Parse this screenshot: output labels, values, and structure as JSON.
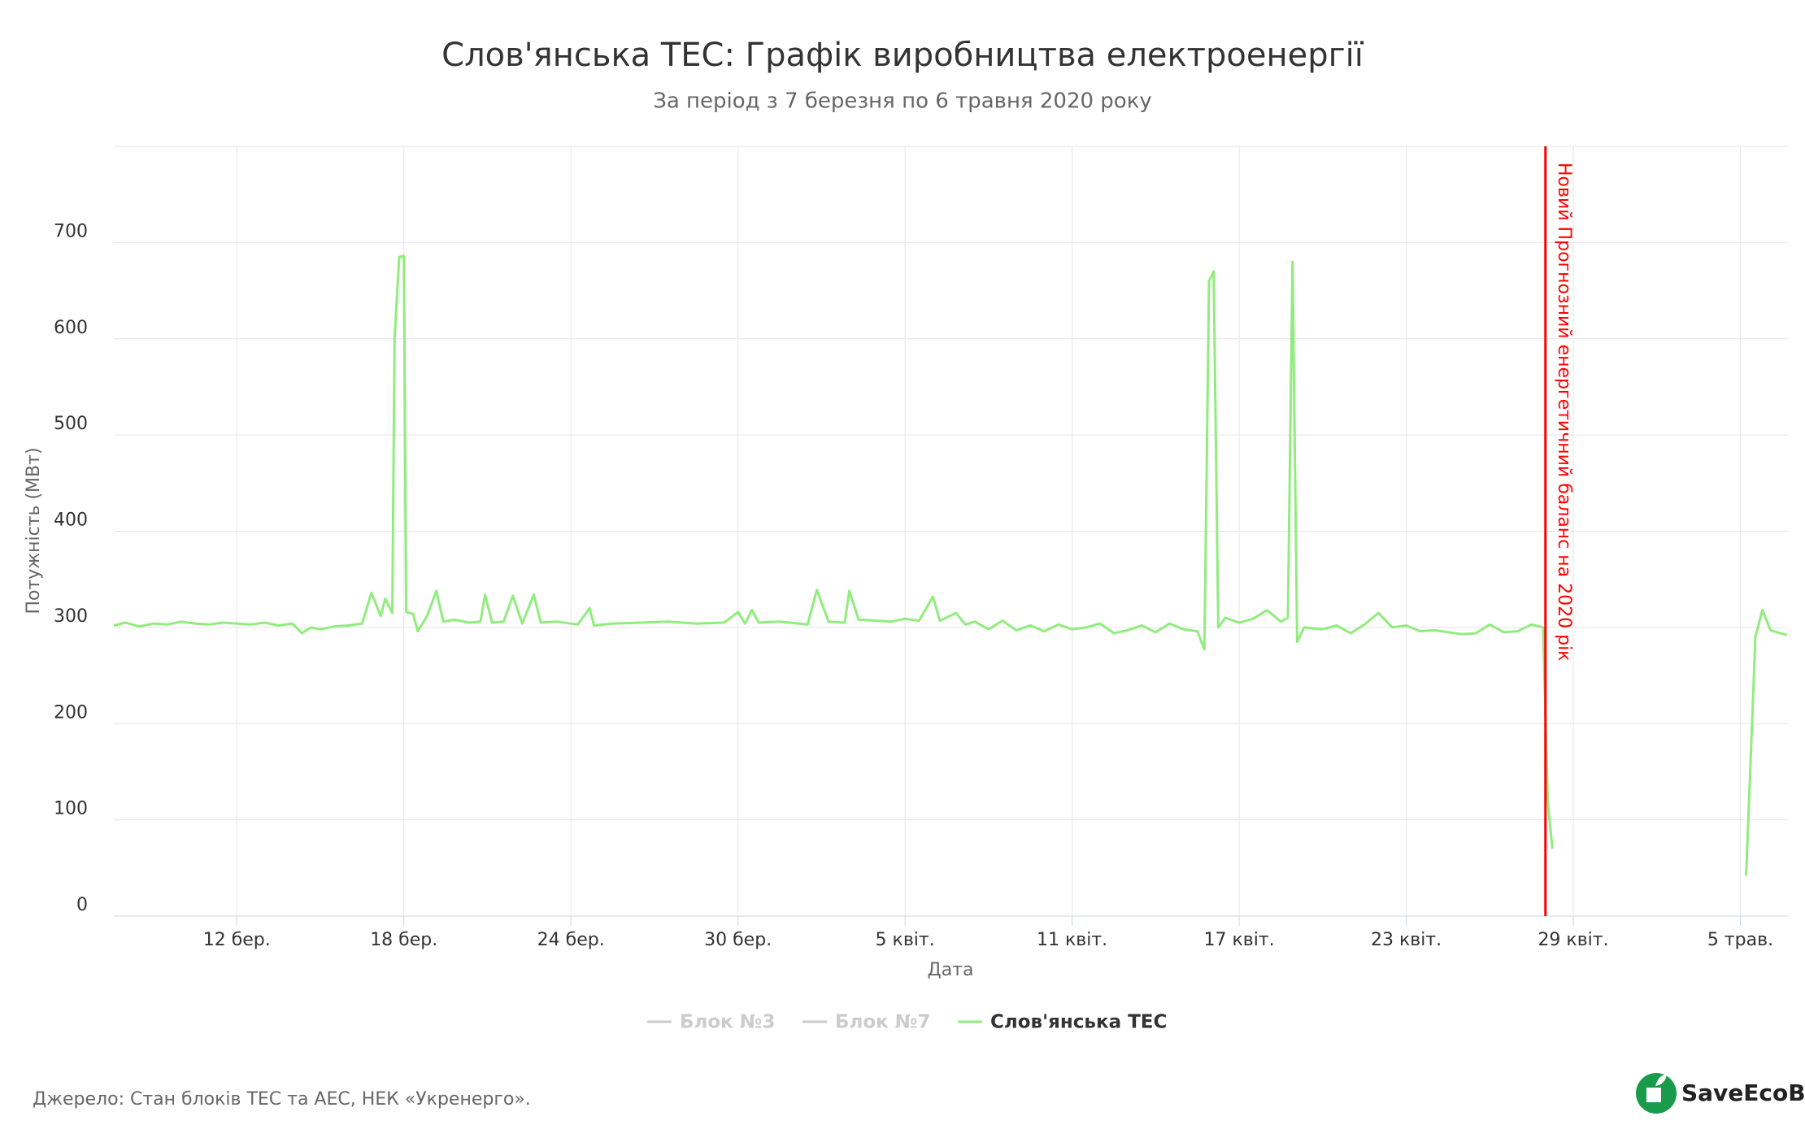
{
  "chart_data": {
    "type": "line",
    "title": "Слов'янська ТЕС: Графік виробництва електроенергії",
    "subtitle": "За період з 7 березня по 6 травня 2020 року",
    "y_label": "Потужність (МВт)",
    "x_label": "Дата",
    "ylim": [
      0,
      800
    ],
    "yticks": [
      0,
      100,
      200,
      300,
      400,
      500,
      600,
      700
    ],
    "grid": true,
    "xlim": [
      "2020-03-07T14:00",
      "2020-05-06T17:00"
    ],
    "xticks": [
      {
        "value": "2020-03-12T00:00",
        "label": "12 бер."
      },
      {
        "value": "2020-03-18T00:00",
        "label": "18 бер."
      },
      {
        "value": "2020-03-24T00:00",
        "label": "24 бер."
      },
      {
        "value": "2020-03-30T00:00",
        "label": "30 бер."
      },
      {
        "value": "2020-04-05T00:00",
        "label": "5 квіт."
      },
      {
        "value": "2020-04-11T00:00",
        "label": "11 квіт."
      },
      {
        "value": "2020-04-17T00:00",
        "label": "17 квіт."
      },
      {
        "value": "2020-04-23T00:00",
        "label": "23 квіт."
      },
      {
        "value": "2020-04-29T00:00",
        "label": "29 квіт."
      },
      {
        "value": "2020-05-05T00:00",
        "label": "5 трав."
      }
    ],
    "plot_line": {
      "x": "2020-04-28T00:00",
      "label": "Новий Прогнозний енергетичний баланс на 2020 рік",
      "color": "#ff0000"
    },
    "x": [
      "2020-03-07T14:00",
      "2020-03-08T00:00",
      "2020-03-08T12:00",
      "2020-03-09T00:00",
      "2020-03-09T12:00",
      "2020-03-10T00:00",
      "2020-03-10T12:00",
      "2020-03-11T00:00",
      "2020-03-11T12:00",
      "2020-03-12T00:00",
      "2020-03-12T12:00",
      "2020-03-13T00:00",
      "2020-03-13T12:00",
      "2020-03-14T00:00",
      "2020-03-14T08:00",
      "2020-03-14T16:00",
      "2020-03-15T00:00",
      "2020-03-15T12:00",
      "2020-03-16T00:00",
      "2020-03-16T12:00",
      "2020-03-16T20:00",
      "2020-03-17T04:00",
      "2020-03-17T08:00",
      "2020-03-17T14:00",
      "2020-03-17T16:00",
      "2020-03-17T20:00",
      "2020-03-18T00:00",
      "2020-03-18T02:00",
      "2020-03-18T08:00",
      "2020-03-18T12:00",
      "2020-03-18T20:00",
      "2020-03-19T04:00",
      "2020-03-19T10:00",
      "2020-03-19T20:00",
      "2020-03-20T08:00",
      "2020-03-20T18:00",
      "2020-03-20T22:00",
      "2020-03-21T04:00",
      "2020-03-21T14:00",
      "2020-03-21T22:00",
      "2020-03-22T06:00",
      "2020-03-22T16:00",
      "2020-03-22T22:00",
      "2020-03-23T12:00",
      "2020-03-24T06:00",
      "2020-03-24T16:00",
      "2020-03-24T20:00",
      "2020-03-25T12:00",
      "2020-03-26T12:00",
      "2020-03-27T12:00",
      "2020-03-28T12:00",
      "2020-03-29T12:00",
      "2020-03-30T00:00",
      "2020-03-30T06:00",
      "2020-03-30T12:00",
      "2020-03-30T18:00",
      "2020-03-31T12:00",
      "2020-04-01T12:00",
      "2020-04-01T20:00",
      "2020-04-02T06:00",
      "2020-04-02T20:00",
      "2020-04-03T00:00",
      "2020-04-03T08:00",
      "2020-04-04T00:00",
      "2020-04-04T12:00",
      "2020-04-05T00:00",
      "2020-04-05T12:00",
      "2020-04-06T00:00",
      "2020-04-06T06:00",
      "2020-04-06T20:00",
      "2020-04-07T04:00",
      "2020-04-07T12:00",
      "2020-04-08T00:00",
      "2020-04-08T12:00",
      "2020-04-09T00:00",
      "2020-04-09T12:00",
      "2020-04-10T00:00",
      "2020-04-10T12:00",
      "2020-04-11T00:00",
      "2020-04-11T12:00",
      "2020-04-12T00:00",
      "2020-04-12T12:00",
      "2020-04-13T00:00",
      "2020-04-13T12:00",
      "2020-04-14T00:00",
      "2020-04-14T12:00",
      "2020-04-15T00:00",
      "2020-04-15T12:00",
      "2020-04-15T18:00",
      "2020-04-15T22:00",
      "2020-04-16T02:00",
      "2020-04-16T06:00",
      "2020-04-16T12:00",
      "2020-04-17T00:00",
      "2020-04-17T12:00",
      "2020-04-18T00:00",
      "2020-04-18T12:00",
      "2020-04-18T18:00",
      "2020-04-18T22:00",
      "2020-04-19T02:00",
      "2020-04-19T08:00",
      "2020-04-20T00:00",
      "2020-04-20T12:00",
      "2020-04-21T00:00",
      "2020-04-21T12:00",
      "2020-04-22T00:00",
      "2020-04-22T12:00",
      "2020-04-23T00:00",
      "2020-04-23T12:00",
      "2020-04-24T00:00",
      "2020-04-24T12:00",
      "2020-04-25T00:00",
      "2020-04-25T12:00",
      "2020-04-26T00:00",
      "2020-04-26T12:00",
      "2020-04-27T00:00",
      "2020-04-27T12:00",
      "2020-04-27T22:00",
      "2020-04-28T02:00",
      "2020-04-28T06:00",
      "2020-05-01T00:00",
      "2020-05-05T05:00",
      "2020-05-05T08:00",
      "2020-05-05T13:00",
      "2020-05-05T19:00",
      "2020-05-06T02:00",
      "2020-05-06T16:00"
    ],
    "series": [
      {
        "name": "Блок №3",
        "color": "#cccccc",
        "visible": false
      },
      {
        "name": "Блок №7",
        "color": "#cccccc",
        "visible": false
      },
      {
        "name": "Слов'янська ТЕС",
        "color": "#90ed7d",
        "visible": true,
        "values": [
          302,
          305,
          301,
          304,
          303,
          306,
          304,
          303,
          305,
          304,
          303,
          305,
          302,
          304,
          294,
          300,
          298,
          301,
          302,
          304,
          336,
          312,
          330,
          315,
          600,
          685,
          686,
          316,
          314,
          296,
          312,
          338,
          306,
          308,
          305,
          306,
          334,
          305,
          306,
          333,
          304,
          334,
          305,
          306,
          303,
          320,
          302,
          304,
          305,
          306,
          304,
          305,
          316,
          304,
          318,
          305,
          306,
          303,
          339,
          306,
          305,
          338,
          308,
          307,
          306,
          309,
          307,
          332,
          307,
          315,
          303,
          306,
          298,
          307,
          297,
          302,
          296,
          303,
          298,
          300,
          304,
          294,
          297,
          302,
          295,
          304,
          298,
          296,
          277,
          660,
          670,
          300,
          310,
          305,
          309,
          318,
          306,
          310,
          680,
          285,
          300,
          298,
          302,
          294,
          303,
          315,
          300,
          302,
          296,
          297,
          295,
          293,
          294,
          303,
          295,
          296,
          303,
          300,
          120,
          70,
          null,
          42,
          135,
          290,
          318,
          297,
          292
        ]
      }
    ]
  },
  "footer": {
    "source": "Джерело: Стан блоків ТЕС та АЕС, НЕК «Укренерго».",
    "logo": "SaveEcoBot"
  }
}
